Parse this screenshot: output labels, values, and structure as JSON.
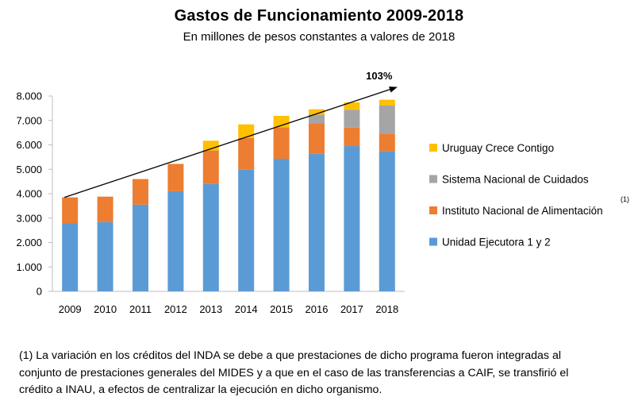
{
  "chart_data": {
    "type": "bar",
    "stacked": true,
    "title": "Gastos de Funcionamiento  2009-2018",
    "subtitle": "En millones de pesos constantes a valores de 2018",
    "categories": [
      "2009",
      "2010",
      "2011",
      "2012",
      "2013",
      "2014",
      "2015",
      "2016",
      "2017",
      "2018"
    ],
    "ylim": [
      0,
      8000
    ],
    "yticks": [
      0,
      1000,
      2000,
      3000,
      4000,
      5000,
      6000,
      7000,
      8000
    ],
    "ytick_labels": [
      "0",
      "1.000",
      "2.000",
      "3.000",
      "4.000",
      "5.000",
      "6.000",
      "7.000",
      "8.000"
    ],
    "grid": false,
    "legend_position": "right",
    "series": [
      {
        "name": "Unidad Ejecutora 1 y 2",
        "color": "#5b9bd5",
        "values": [
          2780,
          2840,
          3550,
          4100,
          4400,
          4980,
          5430,
          5630,
          5950,
          5750
        ]
      },
      {
        "name": "Instituto Nacional de Alimentación",
        "note": "(1)",
        "color": "#ed7d31",
        "values": [
          1070,
          1040,
          1050,
          1120,
          1370,
          1300,
          1290,
          1260,
          760,
          710
        ]
      },
      {
        "name": "Sistema Nacional de Cuidados",
        "color": "#a5a5a5",
        "values": [
          0,
          0,
          0,
          0,
          0,
          0,
          0,
          350,
          730,
          1150
        ]
      },
      {
        "name": "Uruguay Crece Contigo",
        "color": "#ffc000",
        "values": [
          0,
          0,
          0,
          0,
          400,
          560,
          470,
          220,
          300,
          240
        ]
      }
    ],
    "legend_order": [
      "Uruguay Crece Contigo",
      "Sistema Nacional de Cuidados",
      "Instituto Nacional de Alimentación",
      "Unidad Ejecutora 1 y 2"
    ],
    "annotation": {
      "text": "103%",
      "from_category": "2009",
      "from_value": 3850,
      "to_category": "2018",
      "to_value": 8100
    }
  },
  "footnote": {
    "line1": "(1) La variación en los créditos del INDA se debe a que prestaciones de dicho programa fueron integradas al",
    "line2": "conjunto de prestaciones generales del MIDES y a que en el caso de las transferencias a CAIF, se transfirió el",
    "line3": "crédito a INAU, a efectos de centralizar la ejecución en dicho organismo."
  }
}
